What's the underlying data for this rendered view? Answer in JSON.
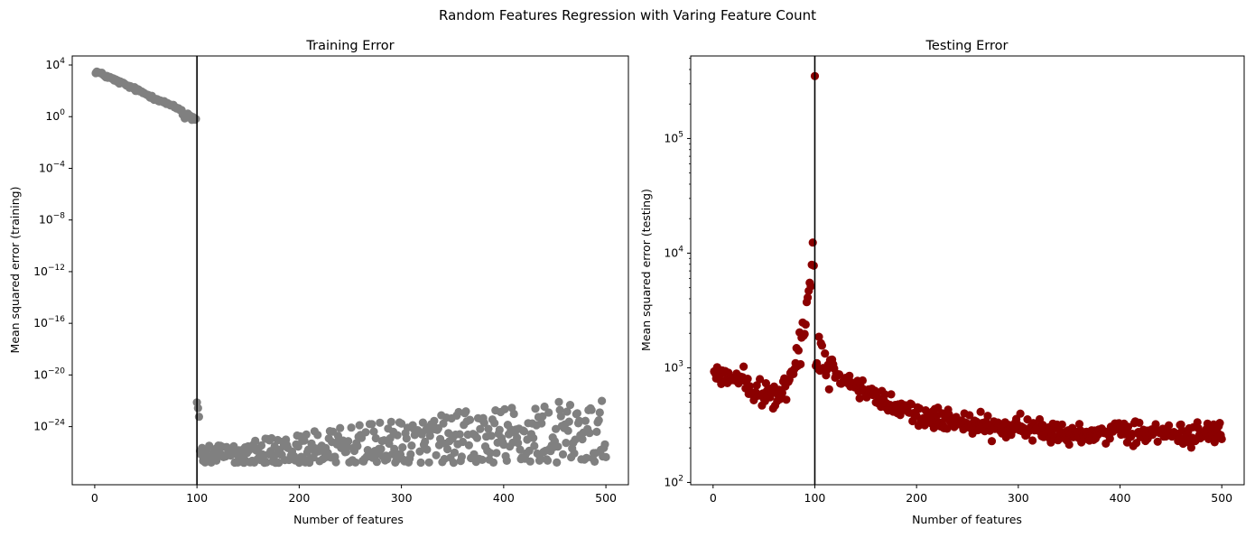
{
  "figure": {
    "suptitle": "Random Features Regression with Varing Feature Count"
  },
  "chart_data": [
    {
      "type": "scatter",
      "title": "Training Error",
      "xlabel": "Number of features",
      "ylabel": "Mean squared error (training)",
      "yscale": "log",
      "xlim": [
        -22,
        522
      ],
      "ylim_log10": [
        -28.5,
        4.7
      ],
      "xticks": [
        0,
        100,
        200,
        300,
        400,
        500
      ],
      "yticks_exponents": [
        4,
        0,
        -4,
        -8,
        -12,
        -16,
        -20,
        -24
      ],
      "ytick_base": "10",
      "vline_x": 100,
      "marker_color": "#808080",
      "grid": false,
      "summary": {
        "n_range": [
          1,
          500
        ],
        "log10_mse_at_1": 3.5,
        "log10_mse_at_99": 0.0,
        "interpolation_threshold": 100,
        "log10_mse_after_threshold_range": [
          -27.0,
          -21.8
        ]
      }
    },
    {
      "type": "scatter",
      "title": "Testing Error",
      "xlabel": "Number of  features",
      "ylabel": "Mean squared error (testing)",
      "yscale": "log",
      "xlim": [
        -22,
        522
      ],
      "ylim_log10": [
        1.98,
        5.72
      ],
      "xticks": [
        0,
        100,
        200,
        300,
        400,
        500
      ],
      "yticks_exponents": [
        2,
        3,
        4,
        5
      ],
      "ytick_base": "10",
      "vline_x": 100,
      "marker_color": "#8b0000",
      "grid": false,
      "summary": {
        "n_range": [
          1,
          500
        ],
        "mse_at_1": 1600,
        "peak_x": 100,
        "peak_mse": 350000,
        "mse_at_500": 200
      }
    }
  ]
}
